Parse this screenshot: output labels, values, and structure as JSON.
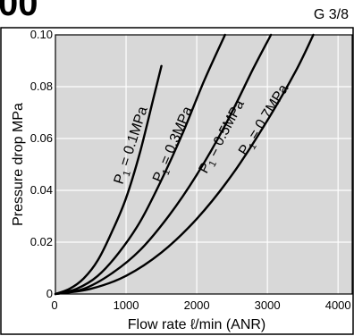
{
  "header": {
    "title_fragment": "00",
    "port_size": "G 3/8"
  },
  "colors": {
    "plot_background": "#d8d8d8",
    "grid": "#ffffff",
    "curve": "#000000",
    "frame": "#000000"
  },
  "chart_data": {
    "type": "line",
    "title": "",
    "xlabel": "Flow rate ℓ/min (ANR)",
    "ylabel": "Pressure drop MPa",
    "xlim": [
      0,
      4200
    ],
    "ylim": [
      0,
      0.1
    ],
    "x_ticks": [
      "0",
      "1000",
      "2000",
      "3000",
      "4000"
    ],
    "x_tick_values": [
      0,
      1000,
      2000,
      3000,
      4000
    ],
    "y_ticks": [
      "0",
      "0.02",
      "0.04",
      "0.06",
      "0.08",
      "0.10"
    ],
    "y_tick_values": [
      0,
      0.02,
      0.04,
      0.06,
      0.08,
      0.1
    ],
    "grid": true,
    "series": [
      {
        "name": "P1 = 0.1MPa",
        "label_base": "P",
        "label_sub": "1",
        "label_rest": " = 0.1MPa",
        "x": [
          0,
          200,
          400,
          600,
          800,
          1000,
          1200,
          1400,
          1500
        ],
        "y": [
          0,
          0.002,
          0.006,
          0.013,
          0.024,
          0.037,
          0.055,
          0.077,
          0.088
        ]
      },
      {
        "name": "P1 = 0.3MPa",
        "label_base": "P",
        "label_sub": "1",
        "label_rest": " = 0.3MPa",
        "x": [
          0,
          300,
          600,
          900,
          1200,
          1500,
          1800,
          2100,
          2400
        ],
        "y": [
          0,
          0.002,
          0.007,
          0.016,
          0.028,
          0.044,
          0.062,
          0.082,
          0.1
        ]
      },
      {
        "name": "P1 = 0.5MPa",
        "label_base": "P",
        "label_sub": "1",
        "label_rest": " = 0.5MPa",
        "x": [
          0,
          400,
          800,
          1200,
          1600,
          2000,
          2400,
          2800,
          3050
        ],
        "y": [
          0,
          0.002,
          0.008,
          0.017,
          0.03,
          0.046,
          0.065,
          0.087,
          0.1
        ]
      },
      {
        "name": "P1 = 0.7MPa",
        "label_base": "P",
        "label_sub": "1",
        "label_rest": " = 0.7MPa",
        "x": [
          0,
          500,
          1000,
          1500,
          2000,
          2500,
          3000,
          3400,
          3650
        ],
        "y": [
          0,
          0.002,
          0.007,
          0.016,
          0.029,
          0.046,
          0.067,
          0.086,
          0.1
        ]
      }
    ]
  }
}
